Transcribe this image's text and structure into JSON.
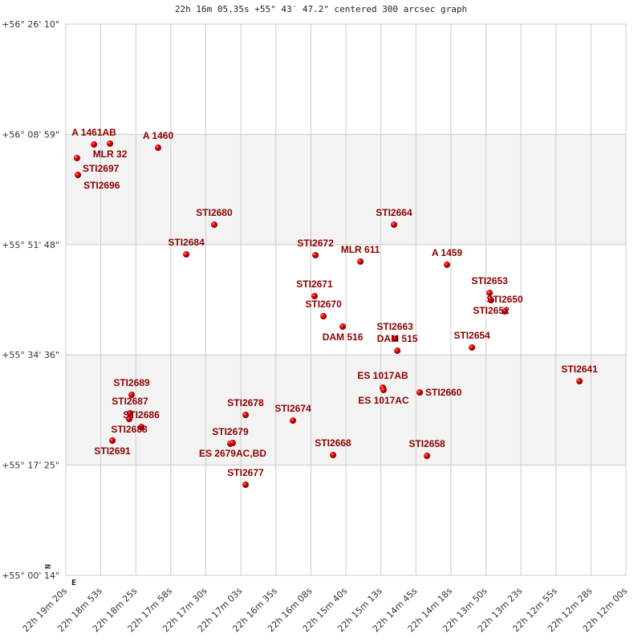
{
  "chart_data": {
    "type": "scatter",
    "title": "22h 16m 05.35s +55° 43′ 47.2\" centered 300 arcsec graph",
    "x_ticks": [
      "22h 19m 20s",
      "22h 18m 53s",
      "22h 18m 25s",
      "22h 17m 58s",
      "22h 17m 30s",
      "22h 17m 03s",
      "22h 16m 35s",
      "22h 16m 08s",
      "22h 15m 40s",
      "22h 15m 13s",
      "22h 14m 45s",
      "22h 14m 18s",
      "22h 13m 50s",
      "22h 13m 23s",
      "22h 12m 55s",
      "22h 12m 28s",
      "22h 12m 00s"
    ],
    "y_ticks": [
      "+56° 26' 10\"",
      "+56° 08' 59\"",
      "+55° 51' 48\"",
      "+55° 34' 36\"",
      "+55° 17' 25\"",
      "+55° 00' 14\""
    ],
    "xlim": [
      "22 19 20",
      "22 12 00"
    ],
    "ylim": [
      "+55 00 14",
      "+56 26 10"
    ],
    "grid": true,
    "compass": {
      "north": "N",
      "east": "E"
    },
    "colors": {
      "label": "#8b0000",
      "point": "#e00000",
      "band": "#f3f3f3",
      "grid": "#cccccc"
    },
    "points": [
      {
        "name": "A 1461AB",
        "ra": "22 18 57.9",
        "dec": "+56 07 24"
      },
      {
        "name": "MLR 32",
        "ra": "22 18 45.3",
        "dec": "+56 07 32"
      },
      {
        "name": "A 1460",
        "ra": "22 18 07.5",
        "dec": "+56 06 54"
      },
      {
        "name": "STI2697",
        "ra": "22 19 11.2",
        "dec": "+56 05 17"
      },
      {
        "name": "STI2696",
        "ra": "22 19 10.5",
        "dec": "+56 02 39"
      },
      {
        "name": "STI2680",
        "ra": "22 17 23.4",
        "dec": "+55 54 54"
      },
      {
        "name": "STI2684",
        "ra": "22 17 45.4",
        "dec": "+55 50 16"
      },
      {
        "name": "STI2664",
        "ra": "22 15 02.2",
        "dec": "+55 54 54"
      },
      {
        "name": "STI2672",
        "ra": "22 16 03.9",
        "dec": "+55 50 09"
      },
      {
        "name": "MLR 611",
        "ra": "22 15 28.6",
        "dec": "+55 49 09"
      },
      {
        "name": "A 1459",
        "ra": "22 14 20.6",
        "dec": "+55 48 39"
      },
      {
        "name": "STI2671",
        "ra": "22 16 04.6",
        "dec": "+55 43 46"
      },
      {
        "name": "STI2670",
        "ra": "22 15 57.6",
        "dec": "+55 40 38"
      },
      {
        "name": "DAM 516",
        "ra": "22 15 42.5",
        "dec": "+55 39 01"
      },
      {
        "name": "STI2653",
        "ra": "22 13 47.1",
        "dec": "+55 44 16"
      },
      {
        "name": "STI2652",
        "ra": "22 13 45.9",
        "dec": "+55 43 08"
      },
      {
        "name": "STI2650",
        "ra": "22 13 35.2",
        "dec": "+55 41 23"
      },
      {
        "name": "STI2663",
        "ra": "22 15 01.5",
        "dec": "+55 37 08"
      },
      {
        "name": "DAM 515",
        "ra": "22 14 59.6",
        "dec": "+55 35 15"
      },
      {
        "name": "STI2654",
        "ra": "22 14 01.0",
        "dec": "+55 35 45"
      },
      {
        "name": "ES 1017AB",
        "ra": "22 15 11.0",
        "dec": "+55 29 30"
      },
      {
        "name": "ES 1017AC",
        "ra": "22 15 10.4",
        "dec": "+55 29 08"
      },
      {
        "name": "STI2660",
        "ra": "22 14 42.0",
        "dec": "+55 28 45"
      },
      {
        "name": "STI2641",
        "ra": "22 12 36.5",
        "dec": "+55 30 30"
      },
      {
        "name": "STI2689",
        "ra": "22 18 28.3",
        "dec": "+55 28 23"
      },
      {
        "name": "STI2687",
        "ra": "22 18 29.6",
        "dec": "+55 25 30"
      },
      {
        "name": "STI2688",
        "ra": "22 18 30.2",
        "dec": "+55 24 37"
      },
      {
        "name": "STI2686",
        "ra": "22 18 20.7",
        "dec": "+55 23 22"
      },
      {
        "name": "STI2691",
        "ra": "22 18 43.4",
        "dec": "+55 21 15"
      },
      {
        "name": "STI2678",
        "ra": "22 16 58.8",
        "dec": "+55 25 15"
      },
      {
        "name": "STI2674",
        "ra": "22 16 21.6",
        "dec": "+55 24 22"
      },
      {
        "name": "STI2679",
        "ra": "22 17 10.8",
        "dec": "+55 20 45"
      },
      {
        "name": "ES 2679AC,BD",
        "ra": "22 17 08.9",
        "dec": "+55 20 52"
      },
      {
        "name": "STI2668",
        "ra": "22 15 50.1",
        "dec": "+55 19 00"
      },
      {
        "name": "STI2658",
        "ra": "22 14 36.3",
        "dec": "+55 18 52"
      },
      {
        "name": "STI2677",
        "ra": "22 16 58.8",
        "dec": "+55 14 22"
      }
    ]
  }
}
